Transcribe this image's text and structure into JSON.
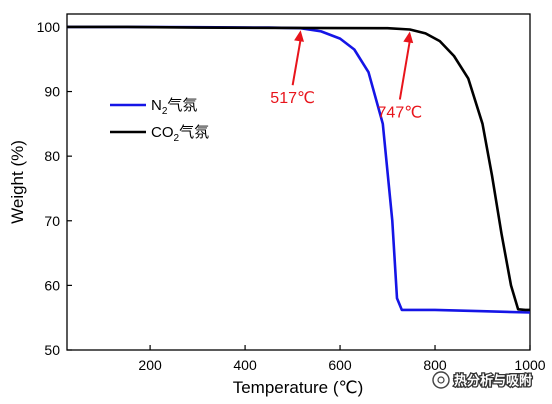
{
  "chart_data": {
    "type": "line",
    "xlabel": "Temperature (℃)",
    "ylabel": "Weight (%)",
    "xlim": [
      25,
      1000
    ],
    "ylim": [
      50,
      102
    ],
    "x_ticks": [
      200,
      400,
      600,
      800,
      1000
    ],
    "y_ticks": [
      50,
      60,
      70,
      80,
      90,
      100
    ],
    "grid": false,
    "legend_position": "upper-left",
    "colors": {
      "n2": "#1515e6",
      "co2": "#000000",
      "annotation": "#e8141b"
    },
    "series": [
      {
        "legend_main": "N",
        "legend_sub": "2",
        "legend_suffix": "气氛",
        "color": "#1515e6",
        "x": [
          25,
          150,
          300,
          450,
          517,
          560,
          600,
          630,
          660,
          690,
          710,
          720,
          730,
          800,
          900,
          1000
        ],
        "y": [
          100,
          100,
          99.95,
          99.9,
          99.8,
          99.3,
          98.2,
          96.5,
          93.0,
          85.0,
          70.0,
          58.0,
          56.2,
          56.2,
          56.0,
          55.8
        ]
      },
      {
        "legend_main": "CO",
        "legend_sub": "2",
        "legend_suffix": "气氛",
        "color": "#000000",
        "x": [
          25,
          150,
          300,
          500,
          700,
          747,
          780,
          810,
          840,
          870,
          900,
          920,
          940,
          960,
          975,
          990,
          1000
        ],
        "y": [
          100,
          100,
          99.9,
          99.85,
          99.8,
          99.6,
          99.0,
          97.8,
          95.5,
          92.0,
          85.0,
          77.0,
          68.0,
          60.0,
          56.3,
          56.2,
          56.2
        ]
      }
    ],
    "annotations": [
      {
        "text": "517℃",
        "x": 517,
        "y": 99.8
      },
      {
        "text": "747℃",
        "x": 747,
        "y": 99.6
      }
    ]
  },
  "watermark": {
    "text": "热分析与吸附"
  }
}
